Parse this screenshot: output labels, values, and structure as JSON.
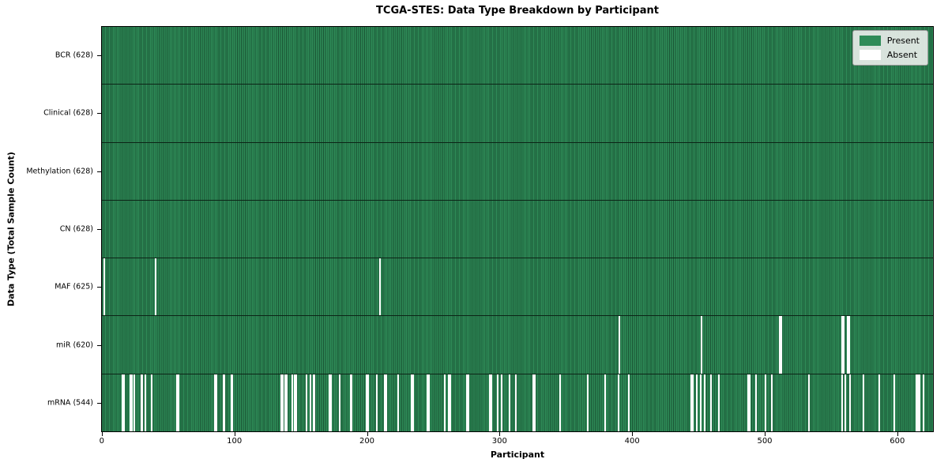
{
  "chart_data": {
    "type": "heatmap",
    "title": "TCGA-STES: Data Type Breakdown by Participant",
    "xlabel": "Participant",
    "ylabel": "Data Type (Total Sample Count)",
    "x_ticks": [
      0,
      100,
      200,
      300,
      400,
      500,
      600
    ],
    "n_participants": 628,
    "xlim": [
      -0.5,
      627.5
    ],
    "grid": false,
    "colors": {
      "present": "#2e8b57",
      "absent": "#ffffff",
      "bar_edge": "#0a2818",
      "row_separator": "#000000"
    },
    "legend": {
      "position": "upper right",
      "entries": [
        {
          "label": "Present",
          "color": "#2e8b57"
        },
        {
          "label": "Absent",
          "color": "#ffffff"
        }
      ]
    },
    "rows": [
      {
        "label": "BCR",
        "total": 628,
        "tick_label": "BCR (628)",
        "absent_participants": []
      },
      {
        "label": "Clinical",
        "total": 628,
        "tick_label": "Clinical (628)",
        "absent_participants": []
      },
      {
        "label": "Methylation",
        "total": 628,
        "tick_label": "Methylation (628)",
        "absent_participants": []
      },
      {
        "label": "CN",
        "total": 628,
        "tick_label": "CN (628)",
        "absent_participants": []
      },
      {
        "label": "MAF",
        "total": 625,
        "tick_label": "MAF (625)",
        "absent_participants": [
          1,
          40,
          209
        ]
      },
      {
        "label": "miR",
        "total": 620,
        "tick_label": "miR (620)",
        "absent_participants": [
          390,
          452,
          511,
          512,
          558,
          559,
          562,
          563
        ]
      },
      {
        "label": "mRNA",
        "total": 544,
        "tick_label": "mRNA (544)",
        "absent_participants": [
          15,
          16,
          21,
          22,
          24,
          29,
          30,
          32,
          37,
          56,
          57,
          85,
          86,
          91,
          92,
          97,
          98,
          135,
          136,
          138,
          139,
          143,
          145,
          146,
          154,
          157,
          159,
          160,
          171,
          172,
          179,
          187,
          188,
          199,
          200,
          207,
          213,
          214,
          223,
          233,
          234,
          245,
          246,
          258,
          261,
          262,
          275,
          276,
          292,
          293,
          298,
          301,
          307,
          312,
          325,
          326,
          345,
          366,
          379,
          389,
          397,
          444,
          445,
          448,
          451,
          454,
          459,
          465,
          487,
          488,
          493,
          500,
          505,
          533,
          558,
          560,
          564,
          574,
          586,
          597,
          614,
          615,
          616,
          619
        ]
      }
    ]
  }
}
